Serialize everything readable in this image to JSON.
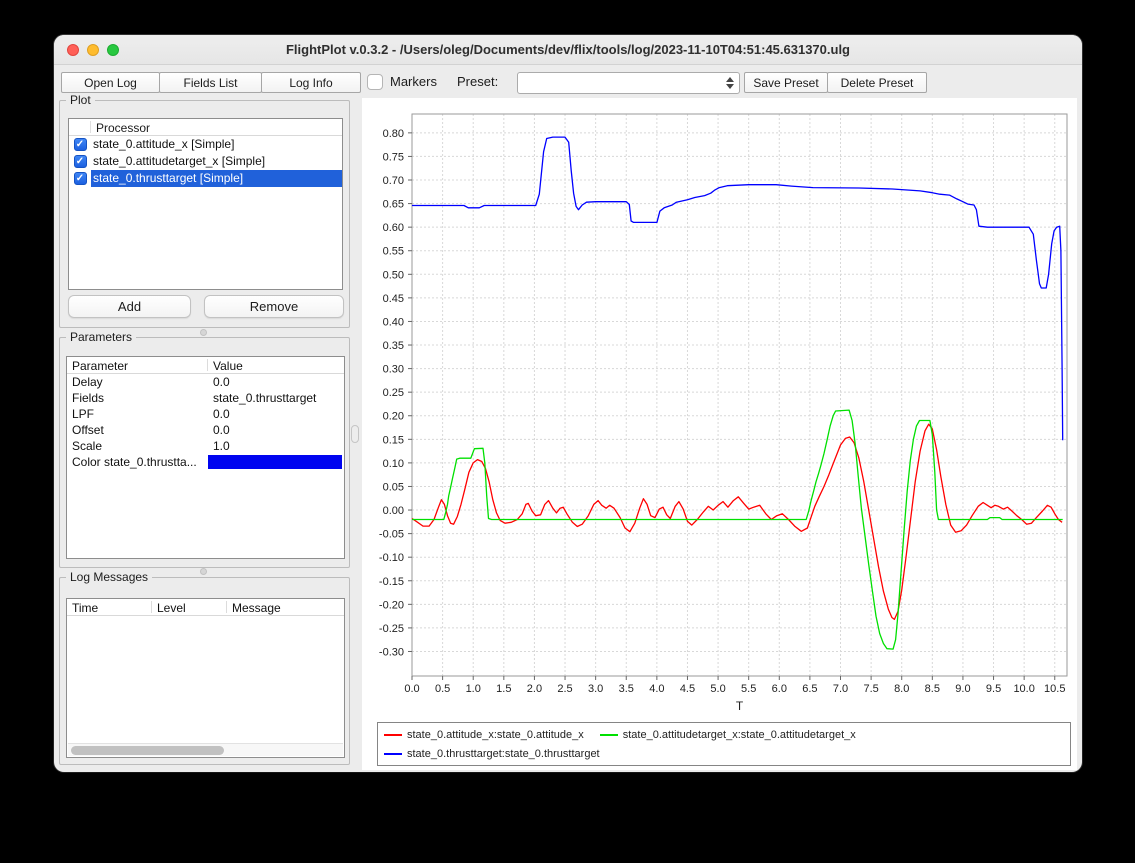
{
  "window": {
    "title": "FlightPlot v.0.3.2 - /Users/oleg/Documents/dev/flix/tools/log/2023-11-10T04:51:45.631370.ulg"
  },
  "toolbar": {
    "open_log_label": "Open Log",
    "fields_list_label": "Fields List",
    "log_info_label": "Log Info",
    "markers_label": "Markers",
    "markers_checked": false,
    "preset_label": "Preset:",
    "preset_value": "",
    "save_preset_label": "Save Preset",
    "delete_preset_label": "Delete Preset"
  },
  "plot_panel": {
    "title": "Plot",
    "header": "Processor",
    "items": [
      {
        "label": "state_0.attitude_x [Simple]",
        "checked": true,
        "selected": false
      },
      {
        "label": "state_0.attitudetarget_x [Simple]",
        "checked": true,
        "selected": false
      },
      {
        "label": "state_0.thrusttarget [Simple]",
        "checked": true,
        "selected": true
      }
    ],
    "add_label": "Add",
    "remove_label": "Remove",
    "check_glyph": "✓"
  },
  "parameters_panel": {
    "title": "Parameters",
    "columns": [
      "Parameter",
      "Value"
    ],
    "rows": [
      [
        "Delay",
        "0.0"
      ],
      [
        "Fields",
        "state_0.thrusttarget"
      ],
      [
        "LPF",
        "0.0"
      ],
      [
        "Offset",
        "0.0"
      ],
      [
        "Scale",
        "1.0"
      ]
    ],
    "color_row": {
      "label": "Color state_0.thrustta...",
      "swatch_color": "#0004f0"
    }
  },
  "log_panel": {
    "title": "Log Messages",
    "columns": [
      "Time",
      "Level",
      "Message"
    ],
    "rows": []
  },
  "chart_data": {
    "type": "line",
    "title": "",
    "xlabel": "T",
    "ylabel": "",
    "grid": true,
    "legend_position": "bottom",
    "xlim": [
      0,
      10.7
    ],
    "ylim": [
      -0.352,
      0.84
    ],
    "xticks": [
      "0.0",
      "0.5",
      "1.0",
      "1.5",
      "2.0",
      "2.5",
      "3.0",
      "3.5",
      "4.0",
      "4.5",
      "5.0",
      "5.5",
      "6.0",
      "6.5",
      "7.0",
      "7.5",
      "8.0",
      "8.5",
      "9.0",
      "9.5",
      "10.0",
      "10.5"
    ],
    "yticks": [
      "-0.30",
      "-0.25",
      "-0.20",
      "-0.15",
      "-0.10",
      "-0.05",
      "0.00",
      "0.05",
      "0.10",
      "0.15",
      "0.20",
      "0.25",
      "0.30",
      "0.35",
      "0.40",
      "0.45",
      "0.50",
      "0.55",
      "0.60",
      "0.65",
      "0.70",
      "0.75",
      "0.80"
    ],
    "series": [
      {
        "name": "state_0.attitude_x:state_0.attitude_x",
        "color": "#ff0000",
        "points": [
          [
            0,
            -0.018
          ],
          [
            0.08,
            -0.025
          ],
          [
            0.18,
            -0.034
          ],
          [
            0.28,
            -0.034
          ],
          [
            0.36,
            -0.02
          ],
          [
            0.43,
            0.005
          ],
          [
            0.48,
            0.022
          ],
          [
            0.53,
            0.012
          ],
          [
            0.58,
            -0.012
          ],
          [
            0.63,
            -0.028
          ],
          [
            0.68,
            -0.03
          ],
          [
            0.74,
            -0.014
          ],
          [
            0.8,
            0.012
          ],
          [
            0.86,
            0.042
          ],
          [
            0.93,
            0.08
          ],
          [
            1.0,
            0.1
          ],
          [
            1.07,
            0.107
          ],
          [
            1.14,
            0.103
          ],
          [
            1.2,
            0.088
          ],
          [
            1.26,
            0.06
          ],
          [
            1.32,
            0.022
          ],
          [
            1.38,
            -0.006
          ],
          [
            1.44,
            -0.022
          ],
          [
            1.52,
            -0.028
          ],
          [
            1.62,
            -0.026
          ],
          [
            1.72,
            -0.02
          ],
          [
            1.8,
            -0.008
          ],
          [
            1.86,
            0.012
          ],
          [
            1.9,
            0.014
          ],
          [
            1.96,
            -0.002
          ],
          [
            2.02,
            -0.012
          ],
          [
            2.1,
            -0.01
          ],
          [
            2.17,
            0.012
          ],
          [
            2.23,
            0.02
          ],
          [
            2.3,
            0.004
          ],
          [
            2.36,
            -0.006
          ],
          [
            2.42,
            0.004
          ],
          [
            2.47,
            0.006
          ],
          [
            2.53,
            -0.008
          ],
          [
            2.62,
            -0.026
          ],
          [
            2.7,
            -0.035
          ],
          [
            2.78,
            -0.03
          ],
          [
            2.88,
            -0.012
          ],
          [
            2.97,
            0.012
          ],
          [
            3.04,
            0.02
          ],
          [
            3.1,
            0.01
          ],
          [
            3.17,
            0.004
          ],
          [
            3.23,
            0.01
          ],
          [
            3.3,
            0.004
          ],
          [
            3.4,
            -0.016
          ],
          [
            3.48,
            -0.038
          ],
          [
            3.56,
            -0.046
          ],
          [
            3.64,
            -0.028
          ],
          [
            3.72,
            0.004
          ],
          [
            3.78,
            0.024
          ],
          [
            3.84,
            0.012
          ],
          [
            3.9,
            -0.012
          ],
          [
            3.97,
            -0.016
          ],
          [
            4.04,
            0.002
          ],
          [
            4.1,
            0.006
          ],
          [
            4.16,
            -0.01
          ],
          [
            4.22,
            -0.018
          ],
          [
            4.3,
            0.008
          ],
          [
            4.36,
            0.018
          ],
          [
            4.43,
            0.002
          ],
          [
            4.5,
            -0.024
          ],
          [
            4.57,
            -0.032
          ],
          [
            4.66,
            -0.02
          ],
          [
            4.76,
            -0.004
          ],
          [
            4.84,
            0.008
          ],
          [
            4.92,
            0.0
          ],
          [
            5.0,
            0.01
          ],
          [
            5.08,
            0.018
          ],
          [
            5.16,
            0.006
          ],
          [
            5.25,
            0.02
          ],
          [
            5.33,
            0.028
          ],
          [
            5.42,
            0.014
          ],
          [
            5.5,
            0.002
          ],
          [
            5.58,
            0.006
          ],
          [
            5.68,
            0.01
          ],
          [
            5.78,
            -0.008
          ],
          [
            5.87,
            -0.02
          ],
          [
            5.96,
            -0.012
          ],
          [
            6.05,
            -0.008
          ],
          [
            6.15,
            -0.02
          ],
          [
            6.25,
            -0.034
          ],
          [
            6.36,
            -0.045
          ],
          [
            6.46,
            -0.038
          ],
          [
            6.52,
            -0.015
          ],
          [
            6.58,
            0.008
          ],
          [
            6.65,
            0.028
          ],
          [
            6.73,
            0.05
          ],
          [
            6.81,
            0.075
          ],
          [
            6.9,
            0.105
          ],
          [
            7.0,
            0.138
          ],
          [
            7.08,
            0.152
          ],
          [
            7.15,
            0.155
          ],
          [
            7.22,
            0.143
          ],
          [
            7.3,
            0.11
          ],
          [
            7.38,
            0.06
          ],
          [
            7.46,
            0.0
          ],
          [
            7.54,
            -0.06
          ],
          [
            7.62,
            -0.12
          ],
          [
            7.7,
            -0.172
          ],
          [
            7.78,
            -0.21
          ],
          [
            7.84,
            -0.228
          ],
          [
            7.88,
            -0.232
          ],
          [
            7.94,
            -0.215
          ],
          [
            8.0,
            -0.17
          ],
          [
            8.07,
            -0.1
          ],
          [
            8.14,
            -0.025
          ],
          [
            8.22,
            0.06
          ],
          [
            8.3,
            0.125
          ],
          [
            8.38,
            0.168
          ],
          [
            8.44,
            0.182
          ],
          [
            8.5,
            0.172
          ],
          [
            8.57,
            0.128
          ],
          [
            8.64,
            0.07
          ],
          [
            8.72,
            0.012
          ],
          [
            8.8,
            -0.032
          ],
          [
            8.88,
            -0.047
          ],
          [
            8.97,
            -0.044
          ],
          [
            9.06,
            -0.032
          ],
          [
            9.15,
            -0.012
          ],
          [
            9.25,
            0.008
          ],
          [
            9.33,
            0.016
          ],
          [
            9.4,
            0.01
          ],
          [
            9.46,
            0.005
          ],
          [
            9.52,
            0.01
          ],
          [
            9.58,
            0.008
          ],
          [
            9.66,
            0.002
          ],
          [
            9.73,
            0.006
          ],
          [
            9.8,
            -0.002
          ],
          [
            9.88,
            -0.012
          ],
          [
            9.96,
            -0.02
          ],
          [
            10.04,
            -0.03
          ],
          [
            10.12,
            -0.028
          ],
          [
            10.2,
            -0.016
          ],
          [
            10.3,
            -0.002
          ],
          [
            10.38,
            0.01
          ],
          [
            10.44,
            0.006
          ],
          [
            10.5,
            -0.008
          ],
          [
            10.56,
            -0.02
          ],
          [
            10.62,
            -0.026
          ]
        ]
      },
      {
        "name": "state_0.attitudetarget_x:state_0.attitudetarget_x",
        "color": "#00e000",
        "points": [
          [
            0,
            -0.02
          ],
          [
            0.52,
            -0.02
          ],
          [
            0.55,
            -0.005
          ],
          [
            0.58,
            0.012
          ],
          [
            0.6,
            0.03
          ],
          [
            0.63,
            0.048
          ],
          [
            0.66,
            0.066
          ],
          [
            0.7,
            0.09
          ],
          [
            0.73,
            0.108
          ],
          [
            0.78,
            0.11
          ],
          [
            0.96,
            0.11
          ],
          [
            0.99,
            0.12
          ],
          [
            1.02,
            0.13
          ],
          [
            1.16,
            0.131
          ],
          [
            1.19,
            0.1
          ],
          [
            1.22,
            0.03
          ],
          [
            1.25,
            -0.018
          ],
          [
            1.3,
            -0.02
          ],
          [
            6.44,
            -0.02
          ],
          [
            6.48,
            -0.002
          ],
          [
            6.52,
            0.02
          ],
          [
            6.56,
            0.04
          ],
          [
            6.6,
            0.06
          ],
          [
            6.64,
            0.077
          ],
          [
            6.68,
            0.095
          ],
          [
            6.73,
            0.12
          ],
          [
            6.78,
            0.148
          ],
          [
            6.83,
            0.178
          ],
          [
            6.88,
            0.2
          ],
          [
            6.92,
            0.21
          ],
          [
            7.14,
            0.212
          ],
          [
            7.19,
            0.19
          ],
          [
            7.24,
            0.14
          ],
          [
            7.29,
            0.07
          ],
          [
            7.34,
            0.005
          ],
          [
            7.4,
            -0.055
          ],
          [
            7.46,
            -0.115
          ],
          [
            7.52,
            -0.17
          ],
          [
            7.58,
            -0.225
          ],
          [
            7.64,
            -0.262
          ],
          [
            7.7,
            -0.283
          ],
          [
            7.76,
            -0.294
          ],
          [
            7.86,
            -0.295
          ],
          [
            7.9,
            -0.275
          ],
          [
            7.94,
            -0.22
          ],
          [
            7.99,
            -0.13
          ],
          [
            8.04,
            -0.04
          ],
          [
            8.09,
            0.04
          ],
          [
            8.14,
            0.105
          ],
          [
            8.19,
            0.15
          ],
          [
            8.24,
            0.178
          ],
          [
            8.29,
            0.19
          ],
          [
            8.46,
            0.19
          ],
          [
            8.5,
            0.16
          ],
          [
            8.54,
            0.08
          ],
          [
            8.57,
            0.0
          ],
          [
            8.6,
            -0.02
          ],
          [
            9.4,
            -0.02
          ],
          [
            9.44,
            -0.016
          ],
          [
            9.6,
            -0.016
          ],
          [
            9.64,
            -0.02
          ],
          [
            10.63,
            -0.02
          ]
        ]
      },
      {
        "name": "state_0.thrusttarget:state_0.thrusttarget",
        "color": "#0000ff",
        "points": [
          [
            0,
            0.646
          ],
          [
            0.85,
            0.646
          ],
          [
            0.92,
            0.641
          ],
          [
            1.1,
            0.641
          ],
          [
            1.18,
            0.646
          ],
          [
            2.02,
            0.646
          ],
          [
            2.08,
            0.67
          ],
          [
            2.15,
            0.76
          ],
          [
            2.2,
            0.788
          ],
          [
            2.3,
            0.791
          ],
          [
            2.5,
            0.791
          ],
          [
            2.56,
            0.78
          ],
          [
            2.6,
            0.72
          ],
          [
            2.64,
            0.672
          ],
          [
            2.68,
            0.644
          ],
          [
            2.72,
            0.637
          ],
          [
            2.78,
            0.647
          ],
          [
            2.85,
            0.653
          ],
          [
            3.0,
            0.654
          ],
          [
            3.5,
            0.654
          ],
          [
            3.55,
            0.648
          ],
          [
            3.58,
            0.613
          ],
          [
            3.62,
            0.61
          ],
          [
            4.0,
            0.61
          ],
          [
            4.05,
            0.634
          ],
          [
            4.12,
            0.641
          ],
          [
            4.25,
            0.647
          ],
          [
            4.32,
            0.653
          ],
          [
            4.5,
            0.658
          ],
          [
            4.62,
            0.663
          ],
          [
            4.78,
            0.667
          ],
          [
            4.88,
            0.672
          ],
          [
            4.95,
            0.679
          ],
          [
            5.02,
            0.684
          ],
          [
            5.15,
            0.688
          ],
          [
            5.5,
            0.69
          ],
          [
            5.95,
            0.69
          ],
          [
            6.2,
            0.687
          ],
          [
            6.55,
            0.684
          ],
          [
            7.3,
            0.683
          ],
          [
            7.85,
            0.681
          ],
          [
            8.3,
            0.677
          ],
          [
            8.5,
            0.673
          ],
          [
            8.62,
            0.67
          ],
          [
            8.78,
            0.668
          ],
          [
            8.9,
            0.66
          ],
          [
            9.0,
            0.654
          ],
          [
            9.08,
            0.649
          ],
          [
            9.18,
            0.647
          ],
          [
            9.22,
            0.637
          ],
          [
            9.26,
            0.602
          ],
          [
            9.4,
            0.6
          ],
          [
            10.08,
            0.6
          ],
          [
            10.15,
            0.585
          ],
          [
            10.2,
            0.53
          ],
          [
            10.25,
            0.48
          ],
          [
            10.28,
            0.471
          ],
          [
            10.36,
            0.471
          ],
          [
            10.4,
            0.5
          ],
          [
            10.45,
            0.565
          ],
          [
            10.49,
            0.592
          ],
          [
            10.53,
            0.6
          ],
          [
            10.58,
            0.602
          ],
          [
            10.6,
            0.55
          ],
          [
            10.62,
            0.3
          ],
          [
            10.63,
            0.148
          ]
        ]
      }
    ]
  }
}
